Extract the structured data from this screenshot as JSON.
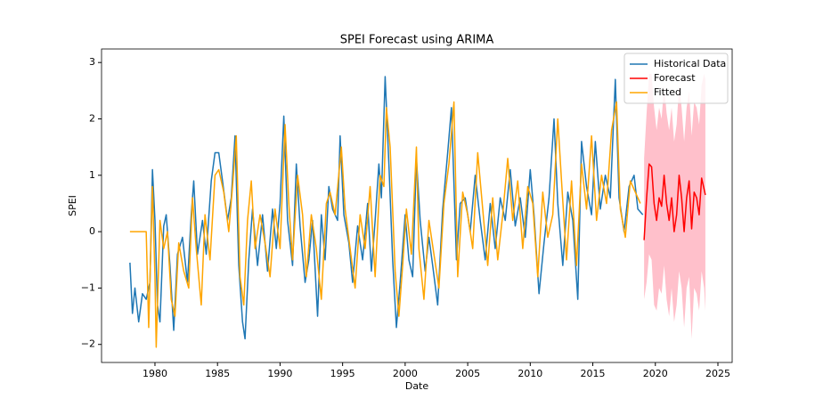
{
  "chart_data": {
    "type": "line",
    "title": "SPEI Forecast using ARIMA",
    "xlabel": "Date",
    "ylabel": "SPEI",
    "xlim": [
      1975.73,
      2026.14
    ],
    "xticks": [
      1980,
      1985,
      1990,
      1995,
      2000,
      2005,
      2010,
      2015,
      2020,
      2025
    ],
    "ylim": [
      -2.32,
      3.24
    ],
    "yticks": [
      {
        "value": -2,
        "label": "−2"
      },
      {
        "value": -1,
        "label": "−1"
      },
      0,
      1,
      2,
      3
    ],
    "legend": "upper right",
    "grid": false,
    "series": [
      {
        "name": "Historical Data",
        "color": "#1f77b4",
        "x": [
          1978.0,
          1978.2,
          1978.4,
          1978.7,
          1979.0,
          1979.3,
          1979.6,
          1979.8,
          1980.0,
          1980.2,
          1980.4,
          1980.7,
          1980.9,
          1981.2,
          1981.5,
          1981.8,
          1982.2,
          1982.6,
          1982.9,
          1983.1,
          1983.4,
          1983.8,
          1984.1,
          1984.5,
          1984.8,
          1985.1,
          1985.4,
          1985.8,
          1986.1,
          1986.4,
          1986.7,
          1987.0,
          1987.2,
          1987.5,
          1987.8,
          1988.2,
          1988.6,
          1989.0,
          1989.4,
          1989.7,
          1990.0,
          1990.3,
          1990.6,
          1991.0,
          1991.3,
          1991.6,
          1992.0,
          1992.3,
          1992.6,
          1993.0,
          1993.3,
          1993.6,
          1993.9,
          1994.2,
          1994.6,
          1994.8,
          1995.1,
          1995.5,
          1995.8,
          1996.2,
          1996.6,
          1997.0,
          1997.3,
          1997.6,
          1997.9,
          1998.1,
          1998.4,
          1998.7,
          1999.0,
          1999.3,
          1999.6,
          2000.0,
          2000.3,
          2000.6,
          2000.9,
          2001.2,
          2001.6,
          2001.9,
          2002.2,
          2002.6,
          2003.0,
          2003.4,
          2003.7,
          2004.1,
          2004.4,
          2004.8,
          2005.2,
          2005.6,
          2006.0,
          2006.4,
          2006.8,
          2007.2,
          2007.6,
          2008.0,
          2008.4,
          2008.8,
          2009.2,
          2009.6,
          2010.0,
          2010.3,
          2010.7,
          2011.1,
          2011.5,
          2011.9,
          2012.2,
          2012.6,
          2013.0,
          2013.4,
          2013.8,
          2014.1,
          2014.5,
          2014.9,
          2015.2,
          2015.6,
          2016.0,
          2016.4,
          2016.8,
          2017.1,
          2017.5,
          2017.9,
          2018.3,
          2018.6,
          2019.0
        ],
        "values": [
          -0.55,
          -1.45,
          -1.0,
          -1.6,
          -1.1,
          -1.2,
          -0.9,
          1.1,
          0.2,
          -1.3,
          -1.6,
          0.1,
          0.3,
          -0.6,
          -1.75,
          -0.4,
          -0.1,
          -0.9,
          0.3,
          0.9,
          -0.4,
          0.2,
          -0.4,
          0.9,
          1.4,
          1.4,
          0.9,
          0.2,
          0.6,
          1.7,
          -0.6,
          -1.6,
          -1.9,
          -0.5,
          0.4,
          -0.6,
          0.3,
          -0.7,
          0.4,
          -0.3,
          0.5,
          2.05,
          0.2,
          -0.6,
          1.2,
          0.1,
          -0.9,
          -0.5,
          0.2,
          -1.5,
          0.3,
          -0.5,
          0.8,
          0.4,
          0.2,
          1.7,
          0.3,
          -0.2,
          -0.9,
          0.1,
          -0.5,
          0.5,
          -0.7,
          0.2,
          1.2,
          0.6,
          2.75,
          1.2,
          -0.5,
          -1.7,
          -0.9,
          0.3,
          -0.5,
          -0.8,
          1.3,
          0.2,
          -0.7,
          -0.1,
          -0.6,
          -1.3,
          0.4,
          1.4,
          2.2,
          -0.5,
          0.5,
          0.6,
          0.0,
          1.0,
          0.2,
          -0.5,
          0.5,
          -0.3,
          0.6,
          0.2,
          1.1,
          0.1,
          0.6,
          -0.1,
          1.1,
          0.3,
          -1.1,
          -0.2,
          0.6,
          2.0,
          0.5,
          -0.6,
          0.7,
          0.2,
          -1.2,
          1.6,
          0.8,
          0.3,
          1.6,
          0.4,
          1.0,
          0.6,
          2.7,
          0.6,
          0.0,
          0.8,
          1.0,
          0.4,
          0.3
        ]
      },
      {
        "name": "Forecast",
        "color": "red",
        "band_color": "pink",
        "x": [
          2019.1,
          2019.3,
          2019.5,
          2019.7,
          2019.9,
          2020.1,
          2020.3,
          2020.5,
          2020.7,
          2020.9,
          2021.1,
          2021.3,
          2021.5,
          2021.7,
          2021.9,
          2022.1,
          2022.3,
          2022.5,
          2022.7,
          2022.9,
          2023.1,
          2023.3,
          2023.5,
          2023.7,
          2023.9,
          2024.0
        ],
        "values": [
          -0.15,
          0.6,
          1.2,
          1.15,
          0.5,
          0.2,
          0.6,
          0.45,
          1.0,
          0.5,
          0.2,
          0.6,
          0.0,
          0.3,
          1.0,
          0.6,
          0.0,
          0.6,
          0.9,
          0.05,
          0.7,
          0.6,
          0.3,
          0.95,
          0.75,
          0.65
        ],
        "lower": [
          -1.2,
          -0.9,
          -0.4,
          -0.5,
          -1.3,
          -1.4,
          -1.0,
          -1.1,
          -0.6,
          -1.2,
          -1.5,
          -1.0,
          -1.6,
          -1.3,
          -0.7,
          -1.0,
          -1.7,
          -1.0,
          -0.8,
          -1.9,
          -1.0,
          -1.1,
          -1.4,
          -0.7,
          -1.0,
          -1.4
        ],
        "upper": [
          1.3,
          2.1,
          2.8,
          2.8,
          2.2,
          1.8,
          2.2,
          2.0,
          2.6,
          2.1,
          1.8,
          2.2,
          1.6,
          1.9,
          2.6,
          2.2,
          1.6,
          2.2,
          2.5,
          1.7,
          2.3,
          2.2,
          1.9,
          2.6,
          2.8,
          2.7
        ]
      },
      {
        "name": "Fitted",
        "color": "orange",
        "x": [
          1978.0,
          1979.3,
          1979.5,
          1979.8,
          1980.0,
          1980.1,
          1980.4,
          1980.7,
          1981.0,
          1981.3,
          1981.6,
          1981.9,
          1982.3,
          1982.7,
          1983.0,
          1983.3,
          1983.7,
          1984.0,
          1984.4,
          1984.8,
          1985.1,
          1985.5,
          1985.9,
          1986.2,
          1986.5,
          1986.8,
          1987.1,
          1987.4,
          1987.7,
          1988.0,
          1988.4,
          1988.8,
          1989.2,
          1989.6,
          1990.0,
          1990.4,
          1990.7,
          1991.0,
          1991.4,
          1991.8,
          1992.1,
          1992.5,
          1992.9,
          1993.3,
          1993.7,
          1994.0,
          1994.4,
          1994.9,
          1995.2,
          1995.6,
          1996.0,
          1996.4,
          1996.8,
          1997.2,
          1997.6,
          1998.0,
          1998.3,
          1998.5,
          1998.8,
          1999.2,
          1999.5,
          1999.8,
          2000.1,
          2000.5,
          2000.9,
          2001.1,
          2001.5,
          2001.9,
          2002.3,
          2002.7,
          2003.1,
          2003.5,
          2003.9,
          2004.2,
          2004.6,
          2005.0,
          2005.4,
          2005.8,
          2006.2,
          2006.6,
          2007.0,
          2007.4,
          2007.8,
          2008.2,
          2008.6,
          2009.0,
          2009.4,
          2009.8,
          2010.2,
          2010.6,
          2011.0,
          2011.4,
          2011.8,
          2012.2,
          2012.5,
          2012.9,
          2013.3,
          2013.7,
          2014.1,
          2014.5,
          2014.9,
          2015.3,
          2015.7,
          2016.1,
          2016.5,
          2016.9,
          2017.2,
          2017.6,
          2018.0,
          2018.4,
          2018.8
        ],
        "values": [
          0,
          0,
          -1.7,
          0.8,
          -0.8,
          -2.05,
          0.2,
          -0.3,
          0.0,
          -1.2,
          -1.5,
          -0.2,
          -0.7,
          -1.0,
          0.6,
          -0.3,
          -1.3,
          0.3,
          -0.5,
          1.0,
          1.1,
          0.7,
          0.0,
          0.8,
          1.7,
          -0.8,
          -1.3,
          0.2,
          0.9,
          -0.3,
          0.3,
          -0.2,
          -0.8,
          0.4,
          -0.3,
          1.9,
          0.5,
          -0.5,
          1.0,
          0.3,
          -0.8,
          0.3,
          -0.3,
          -1.2,
          0.5,
          0.7,
          0.3,
          1.5,
          0.4,
          -0.3,
          -1.0,
          0.3,
          -0.3,
          0.8,
          -0.8,
          1.0,
          0.8,
          2.2,
          1.5,
          -0.7,
          -1.5,
          -0.6,
          0.4,
          -0.4,
          1.5,
          -0.3,
          -1.2,
          0.2,
          -0.4,
          -1.0,
          0.5,
          1.2,
          2.3,
          -0.8,
          0.7,
          0.3,
          -0.3,
          1.4,
          0.4,
          -0.6,
          0.6,
          -0.5,
          0.3,
          1.3,
          0.2,
          0.9,
          -0.3,
          0.8,
          0.5,
          -0.8,
          0.7,
          -0.1,
          0.3,
          2.0,
          0.9,
          -0.5,
          0.9,
          -0.6,
          1.2,
          0.4,
          1.7,
          0.2,
          1.0,
          0.5,
          1.8,
          2.3,
          0.4,
          -0.1,
          0.9,
          0.7,
          0.5
        ]
      }
    ]
  }
}
